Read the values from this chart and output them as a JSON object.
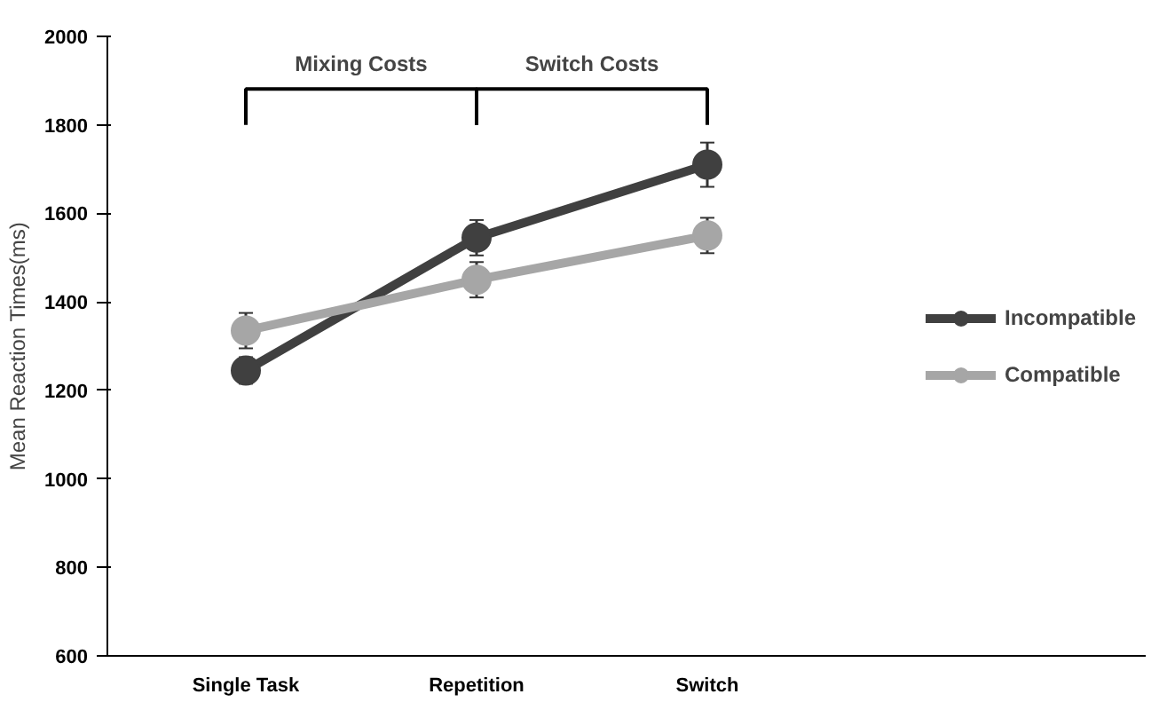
{
  "chart_data": {
    "type": "line",
    "ylabel": "Mean Reaction Times(ms)",
    "categories": [
      "Single Task",
      "Repetition",
      "Switch"
    ],
    "series": [
      {
        "name": "Incompatible",
        "color": "#404040",
        "values": [
          1245,
          1545,
          1710
        ],
        "errors": [
          30,
          40,
          50
        ]
      },
      {
        "name": "Compatible",
        "color": "#a6a6a6",
        "values": [
          1335,
          1450,
          1550
        ],
        "errors": [
          40,
          40,
          40
        ]
      }
    ],
    "ylim": [
      600,
      2000
    ],
    "yticks": [
      600,
      800,
      1000,
      1200,
      1400,
      1600,
      1800,
      2000
    ],
    "annotations": [
      "Mixing Costs",
      "Switch Costs"
    ],
    "marker": "circle",
    "line_style": "solid",
    "legend": "right",
    "grid": false
  }
}
